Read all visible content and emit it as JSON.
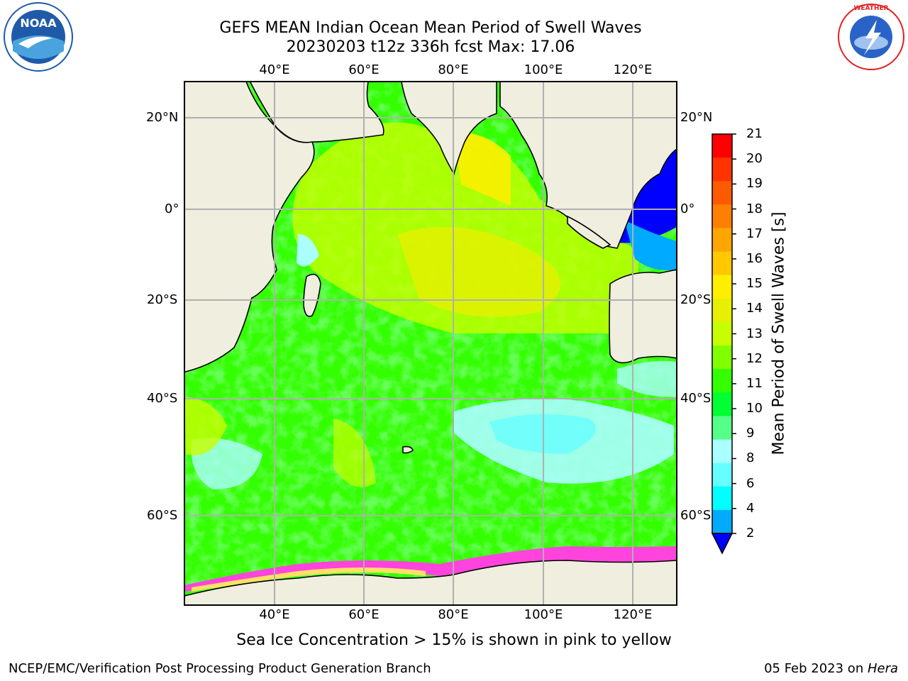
{
  "title": {
    "line1": "GEFS MEAN Indian Ocean Mean Period of Swell Waves",
    "line2": "20230203 t12z 336h fcst   Max: 17.06"
  },
  "logos": {
    "left": "noaa-logo",
    "right": "nws-logo"
  },
  "axes": {
    "lon_labels": [
      "40°E",
      "60°E",
      "80°E",
      "100°E",
      "120°E"
    ],
    "lat_labels": [
      "20°N",
      "0°",
      "20°S",
      "40°S",
      "60°S"
    ]
  },
  "colorbar": {
    "label": "Mean Period of Swell Waves [s]",
    "ticks": [
      "21",
      "20",
      "19",
      "18",
      "17",
      "16",
      "15",
      "14",
      "13",
      "12",
      "11",
      "10",
      "9",
      "8",
      "6",
      "4",
      "2"
    ],
    "colors": [
      "#ff0000",
      "#ff3300",
      "#ff5a00",
      "#ff8000",
      "#ffa500",
      "#ffc800",
      "#ffee00",
      "#e6f000",
      "#c8ff00",
      "#80ff00",
      "#33ff00",
      "#00ff33",
      "#55ff88",
      "#aaffff",
      "#66ffff",
      "#00ffff",
      "#00aaff",
      "#0000ff"
    ]
  },
  "note": "Sea Ice Concentration > 15% is shown in pink to yellow",
  "footer": {
    "left": "NCEP/EMC/Verification Post Processing Product Generation Branch",
    "right_prefix": "05 Feb 2023 on ",
    "right_italic": "Hera"
  }
}
